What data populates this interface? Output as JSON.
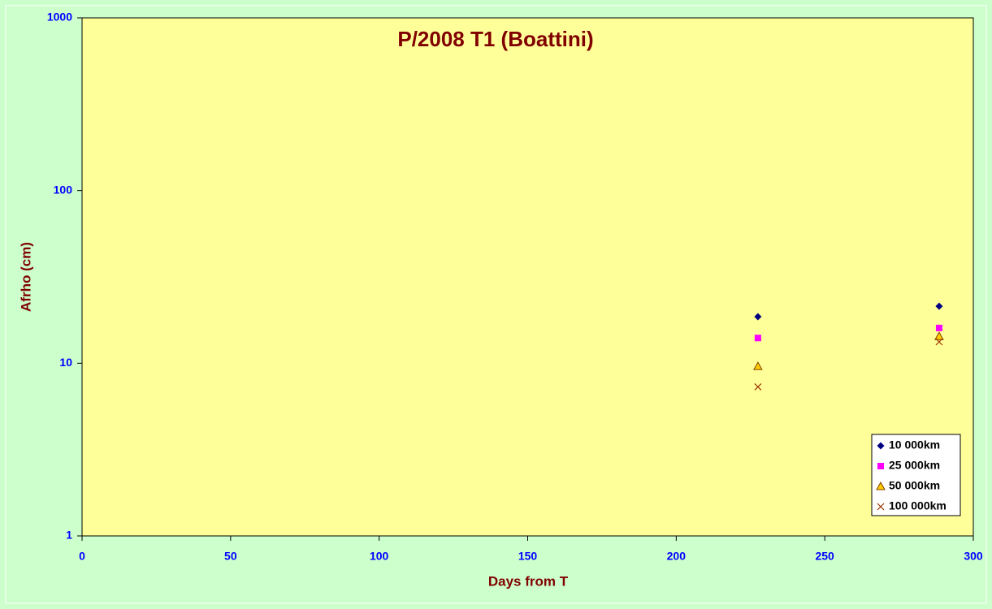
{
  "chart_data": {
    "type": "scatter",
    "title": "P/2008 T1 (Boattini)",
    "xlabel": "Days from T",
    "ylabel": "Afrho (cm)",
    "xlim": [
      0,
      300
    ],
    "xticks": [
      0,
      50,
      100,
      150,
      200,
      250,
      300
    ],
    "ylim": [
      1,
      1000
    ],
    "yticks": [
      1,
      10,
      100,
      1000
    ],
    "yscale": "log",
    "legend": "lower right",
    "x": [
      227.5,
      288.5
    ],
    "series": [
      {
        "name": "10 000km",
        "color": "#000080",
        "marker": "diamond",
        "values": [
          18.6,
          21.4
        ]
      },
      {
        "name": "25 000km",
        "color": "#ff00ff",
        "marker": "square",
        "values": [
          14.0,
          16.0
        ]
      },
      {
        "name": "50 000km",
        "color": "#ffcc00",
        "marker": "triangle",
        "values": [
          9.6,
          14.3
        ]
      },
      {
        "name": "100 000km",
        "color": "#993300",
        "marker": "x",
        "values": [
          7.3,
          13.3
        ]
      }
    ]
  }
}
